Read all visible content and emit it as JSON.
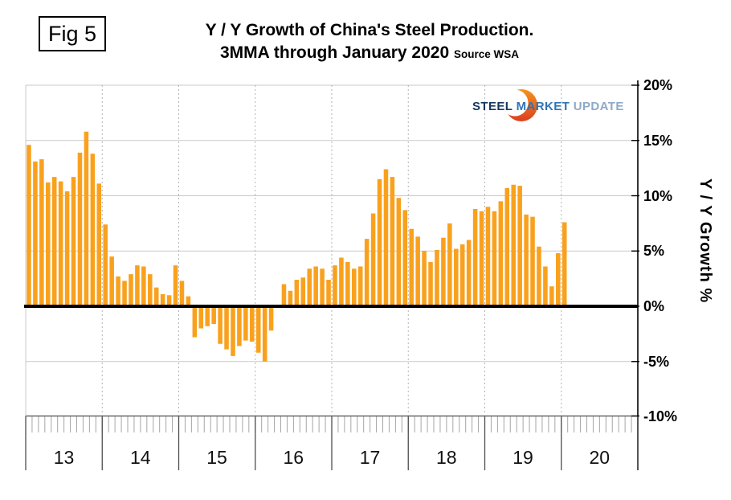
{
  "figure_label": "Fig 5",
  "title": {
    "line1": "Y / Y Growth of China's Steel Production.",
    "line2": "3MMA through January 2020",
    "source": "Source WSA"
  },
  "logo": {
    "word1": "STEEL",
    "word2": "MARKET",
    "word3": "UPDATE",
    "icon": "orange-crescent-swoosh",
    "colors": {
      "word1": "#17375E",
      "word2": "#2E74B5",
      "word3": "#8EA9C9",
      "swoosh_top": "#F6921E",
      "swoosh_bottom": "#DD3F1E"
    }
  },
  "y_axis": {
    "title": "Y / Y Growth %",
    "tick_labels": [
      "20%",
      "15%",
      "10%",
      "5%",
      "0%",
      "-5%",
      "-10%"
    ],
    "tick_values": [
      20,
      15,
      10,
      5,
      0,
      -5,
      -10
    ]
  },
  "x_axis": {
    "year_labels": [
      "13",
      "14",
      "15",
      "16",
      "17",
      "18",
      "19",
      "20"
    ],
    "minor_ticks_per_year": 12
  },
  "chart_data": {
    "type": "bar",
    "title": "Y / Y Growth of China's Steel Production. 3MMA through January 2020",
    "ylabel": "Y / Y Growth %",
    "ylim": [
      -10,
      20
    ],
    "grid": true,
    "bar_color": "#F9A11D",
    "zero_line_color": "#000000",
    "series_name": "Y/Y Growth % (3MMA)",
    "first_month": "2013-01",
    "last_month": "2020-01",
    "values_by_year": {
      "2013": [
        14.6,
        13.1,
        13.3,
        11.2,
        11.7,
        11.3,
        10.4,
        11.7,
        13.9,
        15.8,
        13.8,
        11.1
      ],
      "2014": [
        7.4,
        4.5,
        2.7,
        2.3,
        2.9,
        3.7,
        3.6,
        2.9,
        1.7,
        1.1,
        1.0,
        3.7
      ],
      "2015": [
        2.3,
        0.9,
        -2.8,
        -2.0,
        -1.8,
        -1.6,
        -3.4,
        -3.9,
        -4.5,
        -3.6,
        -3.1,
        -3.2
      ],
      "2016": [
        -4.2,
        -5.0,
        -2.2,
        0.0,
        2.0,
        1.4,
        2.4,
        2.6,
        3.4,
        3.6,
        3.4,
        2.4
      ],
      "2017": [
        3.7,
        4.4,
        4.0,
        3.4,
        3.6,
        6.1,
        8.4,
        11.5,
        12.4,
        11.7,
        9.8,
        8.7
      ],
      "2018": [
        7.0,
        6.3,
        5.0,
        4.0,
        5.1,
        6.2,
        7.5,
        5.2,
        5.6,
        6.0,
        8.8,
        8.6
      ],
      "2019": [
        9.0,
        8.6,
        9.5,
        10.7,
        11.0,
        10.9,
        8.3,
        8.1,
        5.4,
        3.6,
        1.8,
        4.8
      ],
      "2020": [
        7.6
      ]
    }
  }
}
